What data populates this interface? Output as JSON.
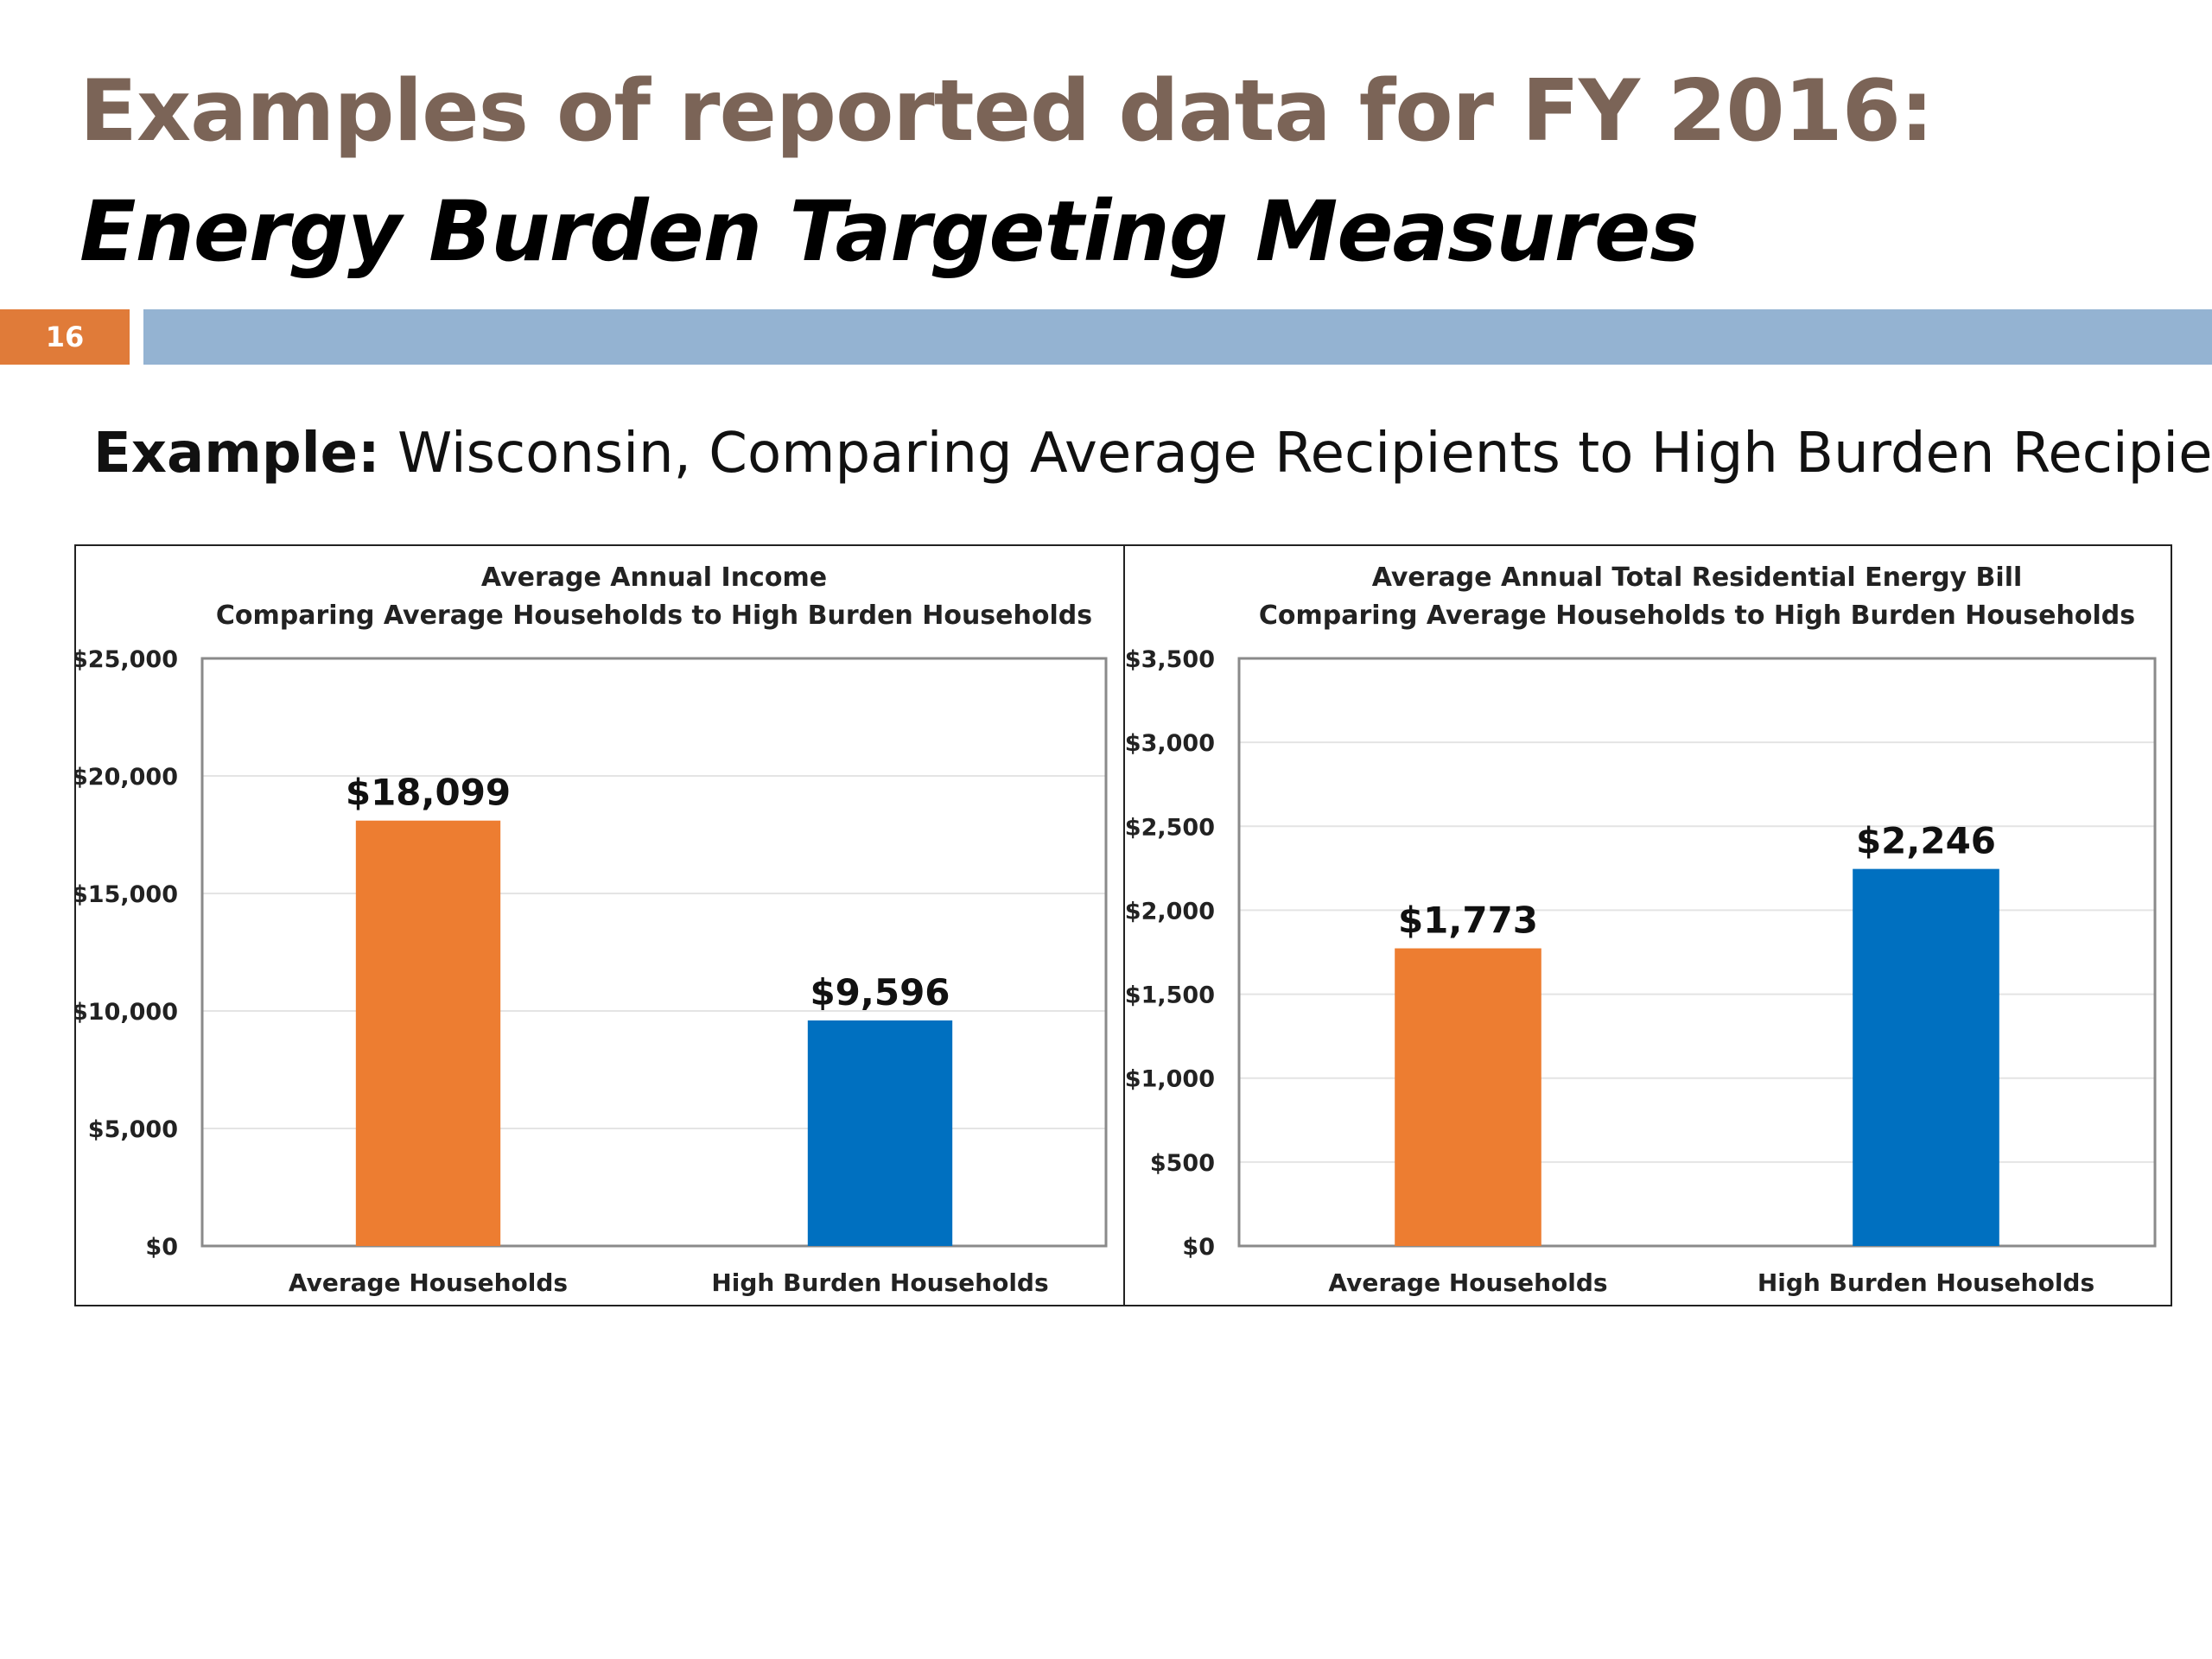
{
  "slide": {
    "title": "Examples of reported data for FY 2016:",
    "subtitle": "Energy Burden Targeting Measures",
    "slide_number": "16",
    "example_label": "Example:",
    "example_text": " Wisconsin, Comparing Average Recipients to High Burden Recipients"
  },
  "colors": {
    "title": "#7b6457",
    "accent_orange": "#ed7d31",
    "accent_blue": "#0070c0",
    "header_bar": "#94b3d2",
    "slide_number_bg": "#e07b39"
  },
  "chart_data": [
    {
      "type": "bar",
      "title": "Average Annual Income",
      "subtitle": "Comparing Average Households to High Burden Households",
      "categories": [
        "Average Households",
        "High Burden Households"
      ],
      "values": [
        18099,
        9596
      ],
      "value_labels": [
        "$18,099",
        "$9,596"
      ],
      "bar_colors": [
        "#ed7d31",
        "#0070c0"
      ],
      "ylim": [
        0,
        25000
      ],
      "yticks": [
        0,
        5000,
        10000,
        15000,
        20000,
        25000
      ],
      "ytick_labels": [
        "$0",
        "$5,000",
        "$10,000",
        "$15,000",
        "$20,000",
        "$25,000"
      ],
      "grid": true,
      "legend": "none"
    },
    {
      "type": "bar",
      "title": "Average Annual Total Residential Energy Bill",
      "subtitle": "Comparing Average Households to High Burden Households",
      "categories": [
        "Average Households",
        "High Burden Households"
      ],
      "values": [
        1773,
        2246
      ],
      "value_labels": [
        "$1,773",
        "$2,246"
      ],
      "bar_colors": [
        "#ed7d31",
        "#0070c0"
      ],
      "ylim": [
        0,
        3500
      ],
      "yticks": [
        0,
        500,
        1000,
        1500,
        2000,
        2500,
        3000,
        3500
      ],
      "ytick_labels": [
        "$0",
        "$500",
        "$1,000",
        "$1,500",
        "$2,000",
        "$2,500",
        "$3,000",
        "$3,500"
      ],
      "grid": true,
      "legend": "none"
    }
  ]
}
